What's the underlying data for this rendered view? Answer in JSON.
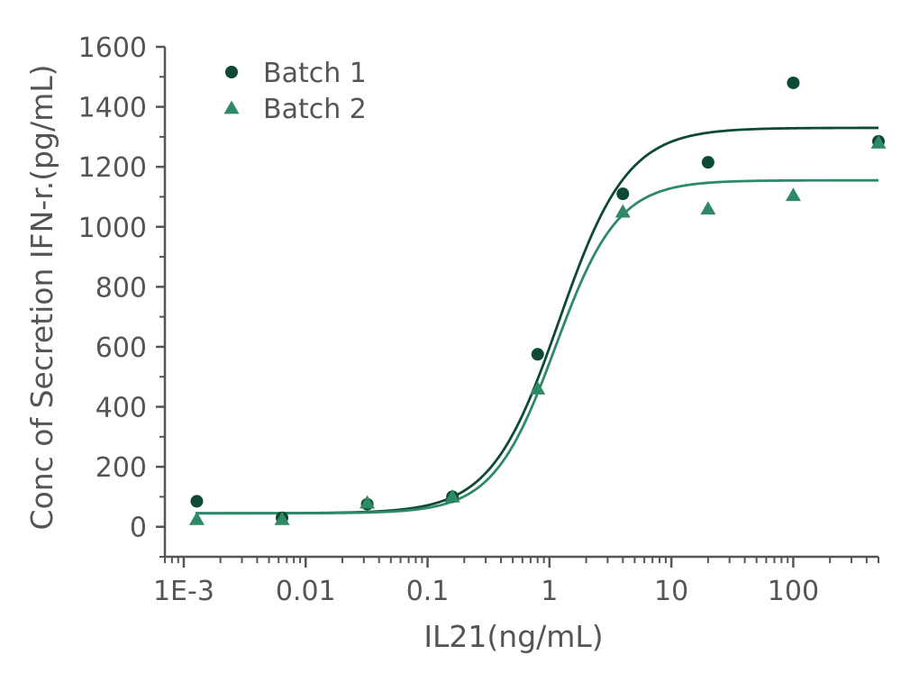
{
  "chart_data": {
    "type": "scatter",
    "title": "",
    "xlabel": "IL21(ng/mL)",
    "ylabel": "Conc of Secretion IFN-r.(pg/mL)",
    "xscale": "log",
    "xlim": [
      0.0007,
      500
    ],
    "ylim": [
      -100,
      1600
    ],
    "xticks": [
      {
        "value": 0.001,
        "label": "1E-3"
      },
      {
        "value": 0.01,
        "label": "0.01"
      },
      {
        "value": 0.1,
        "label": "0.1"
      },
      {
        "value": 1,
        "label": "1"
      },
      {
        "value": 10,
        "label": "10"
      },
      {
        "value": 100,
        "label": "100"
      }
    ],
    "yticks": [
      {
        "value": 0,
        "label": "0"
      },
      {
        "value": 200,
        "label": "200"
      },
      {
        "value": 400,
        "label": "400"
      },
      {
        "value": 600,
        "label": "600"
      },
      {
        "value": 800,
        "label": "800"
      },
      {
        "value": 1000,
        "label": "1000"
      },
      {
        "value": 1200,
        "label": "1200"
      },
      {
        "value": 1400,
        "label": "1400"
      },
      {
        "value": 1600,
        "label": "1600"
      }
    ],
    "grid": false,
    "legend_position": "top-left",
    "series": [
      {
        "name": "Batch 1",
        "marker": "circle",
        "color": "#0e4a33",
        "x": [
          0.00128,
          0.0064,
          0.032,
          0.16,
          0.8,
          4,
          20,
          100,
          500
        ],
        "y": [
          85,
          30,
          75,
          100,
          575,
          1110,
          1215,
          1480,
          1285
        ],
        "fit": {
          "bottom": 45,
          "top": 1330,
          "ec50": 1.2,
          "hill": 1.55
        }
      },
      {
        "name": "Batch 2",
        "marker": "triangle",
        "color": "#2e8a66",
        "x": [
          0.00128,
          0.0064,
          0.032,
          0.16,
          0.8,
          4,
          20,
          100,
          500
        ],
        "y": [
          25,
          25,
          80,
          100,
          460,
          1050,
          1060,
          1105,
          1280
        ],
        "fit": {
          "bottom": 45,
          "top": 1155,
          "ec50": 1.12,
          "hill": 1.7
        }
      }
    ]
  }
}
